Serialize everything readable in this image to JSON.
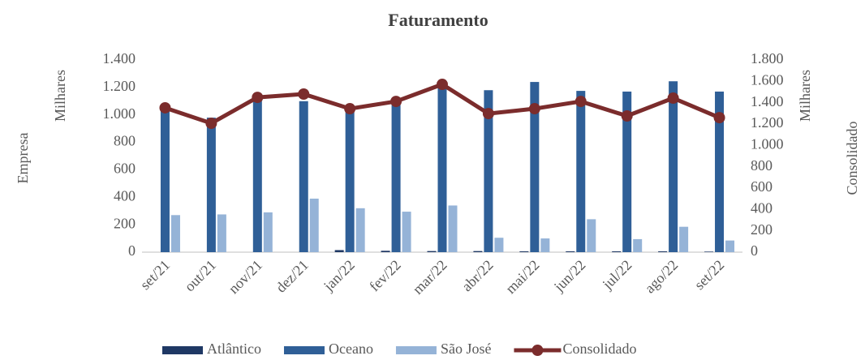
{
  "chart_data": {
    "type": "bar-line",
    "title": "Faturamento",
    "y_label": "Empresa",
    "y_unit": "Milhares",
    "y2_label": "Consolidado",
    "y2_unit": "Milhares",
    "categories": [
      "set/21",
      "out/21",
      "nov/21",
      "dez/21",
      "jan/22",
      "fev/22",
      "mar/22",
      "abr/22",
      "mai/22",
      "jun/22",
      "jul/22",
      "ago/22",
      "set/22"
    ],
    "series": [
      {
        "name": "Atlântico",
        "type": "bar",
        "color": "#1f3864",
        "values": [
          0,
          0,
          0,
          0,
          15,
          10,
          8,
          8,
          6,
          6,
          6,
          6,
          4
        ]
      },
      {
        "name": "Oceano",
        "type": "bar",
        "color": "#2f5f97",
        "values": [
          1060,
          980,
          1130,
          1100,
          1060,
          1100,
          1220,
          1180,
          1240,
          1175,
          1170,
          1245,
          1170
        ]
      },
      {
        "name": "São José",
        "type": "bar",
        "color": "#95b3d7",
        "values": [
          270,
          275,
          290,
          390,
          320,
          295,
          340,
          105,
          100,
          240,
          95,
          185,
          85
        ]
      },
      {
        "name": "Consolidado",
        "type": "line",
        "axis": "y2",
        "color": "#7b2c2c",
        "values": [
          1352,
          1207,
          1450,
          1481,
          1344,
          1412,
          1572,
          1298,
          1344,
          1412,
          1276,
          1443,
          1260
        ]
      }
    ],
    "ylim": [
      0,
      1400
    ],
    "yticks": [
      0,
      200,
      400,
      600,
      800,
      {
        "value": 1000,
        "label": "1.000"
      },
      {
        "value": 1200,
        "label": "1.200"
      },
      {
        "value": 1400,
        "label": "1.400"
      }
    ],
    "y2lim": [
      0,
      1800
    ],
    "y2ticks": [
      0,
      200,
      400,
      600,
      800,
      {
        "value": 1000,
        "label": "1.000"
      },
      {
        "value": 1200,
        "label": "1.200"
      },
      {
        "value": 1400,
        "label": "1.400"
      },
      {
        "value": 1600,
        "label": "1.600"
      },
      {
        "value": 1800,
        "label": "1.800"
      }
    ],
    "legend": "bottom"
  }
}
